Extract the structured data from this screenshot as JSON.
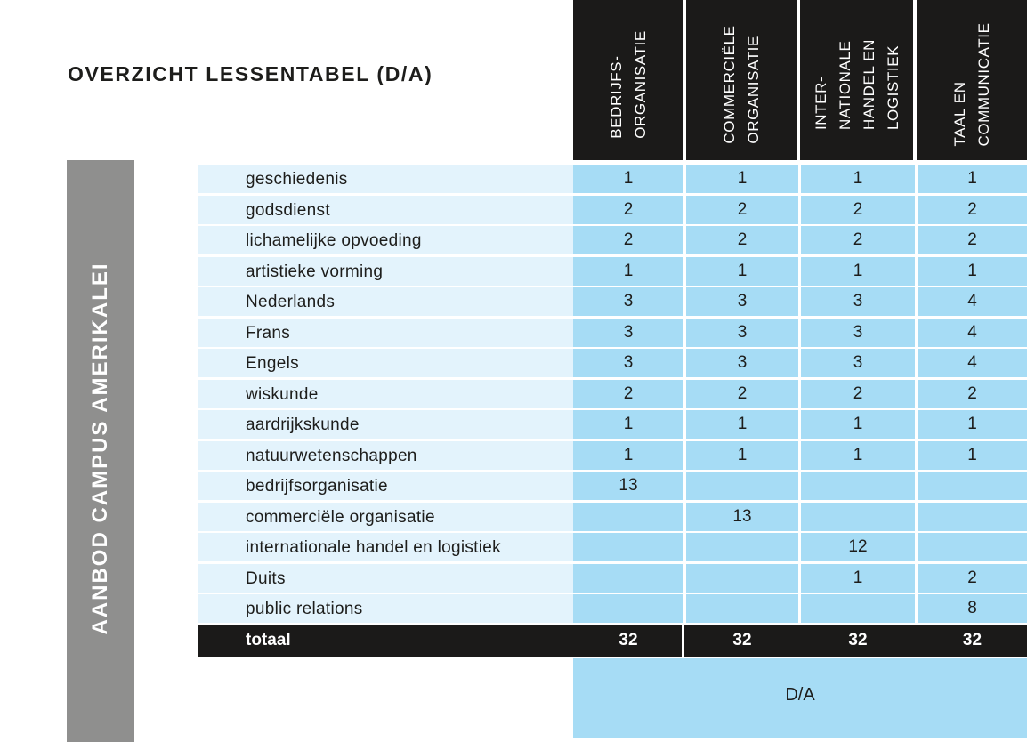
{
  "title": "OVERZICHT LESSENTABEL (D/A)",
  "sidebar_label": "AANBOD CAMPUS AMERIKALEI",
  "columns": [
    {
      "lines": [
        "BEDRIJFS-",
        "ORGANISATIE"
      ]
    },
    {
      "lines": [
        "COMMERCIËLE",
        "ORGANISATIE"
      ]
    },
    {
      "lines": [
        "INTER-",
        "NATIONALE",
        "HANDEL EN",
        "LOGISTIEK"
      ]
    },
    {
      "lines": [
        "TAAL EN",
        "COMMUNICATIE"
      ]
    }
  ],
  "rows": [
    {
      "subject": "geschiedenis",
      "values": [
        "1",
        "1",
        "1",
        "1"
      ]
    },
    {
      "subject": "godsdienst",
      "values": [
        "2",
        "2",
        "2",
        "2"
      ]
    },
    {
      "subject": "lichamelijke opvoeding",
      "values": [
        "2",
        "2",
        "2",
        "2"
      ]
    },
    {
      "subject": "artistieke vorming",
      "values": [
        "1",
        "1",
        "1",
        "1"
      ]
    },
    {
      "subject": "Nederlands",
      "values": [
        "3",
        "3",
        "3",
        "4"
      ]
    },
    {
      "subject": "Frans",
      "values": [
        "3",
        "3",
        "3",
        "4"
      ]
    },
    {
      "subject": "Engels",
      "values": [
        "3",
        "3",
        "3",
        "4"
      ]
    },
    {
      "subject": "wiskunde",
      "values": [
        "2",
        "2",
        "2",
        "2"
      ]
    },
    {
      "subject": "aardrijkskunde",
      "values": [
        "1",
        "1",
        "1",
        "1"
      ]
    },
    {
      "subject": "natuurwetenschappen",
      "values": [
        "1",
        "1",
        "1",
        "1"
      ]
    },
    {
      "subject": "bedrijfsorganisatie",
      "values": [
        "13",
        "",
        "",
        ""
      ]
    },
    {
      "subject": "commerciële organisatie",
      "values": [
        "",
        "13",
        "",
        ""
      ]
    },
    {
      "subject": "internationale handel en logistiek",
      "values": [
        "",
        "",
        "12",
        ""
      ]
    },
    {
      "subject": "Duits",
      "values": [
        "",
        "",
        "1",
        "2"
      ]
    },
    {
      "subject": "public relations",
      "values": [
        "",
        "",
        "",
        "8"
      ]
    }
  ],
  "total": {
    "label": "totaal",
    "values": [
      "32",
      "32",
      "32",
      "32"
    ]
  },
  "footer_label": "D/A",
  "colors": {
    "dark": "#1b1a19",
    "cell_blue": "#a6dcf5",
    "label_blue": "#e3f3fc",
    "sidebar_gray": "#8f8f8e"
  }
}
